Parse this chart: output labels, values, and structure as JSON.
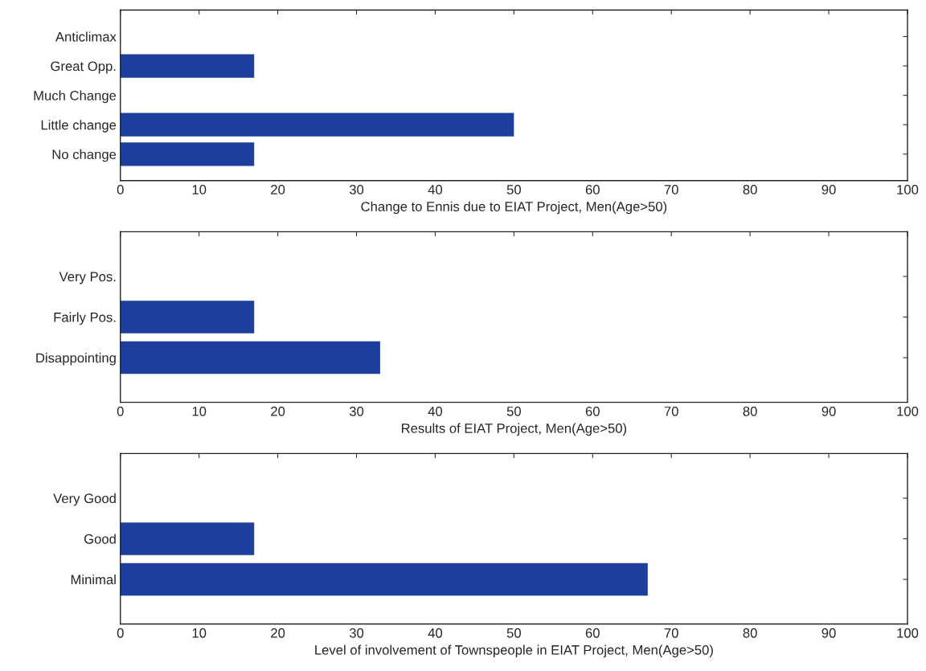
{
  "chart_data": [
    {
      "type": "bar",
      "orientation": "horizontal",
      "xlabel": "Change to Ennis due to EIAT Project, Men(Age>50)",
      "categories": [
        "Anticlimax",
        "Great Opp.",
        "Much Change",
        "Little change",
        "No change"
      ],
      "values": [
        0,
        17,
        0,
        50,
        17
      ],
      "color": "#1c3f9e",
      "xlim": [
        0,
        100
      ],
      "xticks": [
        0,
        10,
        20,
        30,
        40,
        50,
        60,
        70,
        80,
        90,
        100
      ],
      "grid": false
    },
    {
      "type": "bar",
      "orientation": "horizontal",
      "xlabel": "Results of EIAT Project, Men(Age>50)",
      "categories": [
        "Very Pos.",
        "Fairly Pos.",
        "Disappointing"
      ],
      "values": [
        0,
        17,
        33
      ],
      "color": "#1c3f9e",
      "xlim": [
        0,
        100
      ],
      "xticks": [
        0,
        10,
        20,
        30,
        40,
        50,
        60,
        70,
        80,
        90,
        100
      ],
      "grid": false
    },
    {
      "type": "bar",
      "orientation": "horizontal",
      "xlabel": "Level of involvement of Townspeople in EIAT Project, Men(Age>50)",
      "categories": [
        "Very Good",
        "Good",
        "Minimal"
      ],
      "values": [
        0,
        17,
        67
      ],
      "color": "#1c3f9e",
      "xlim": [
        0,
        100
      ],
      "xticks": [
        0,
        10,
        20,
        30,
        40,
        50,
        60,
        70,
        80,
        90,
        100
      ],
      "grid": false
    }
  ]
}
